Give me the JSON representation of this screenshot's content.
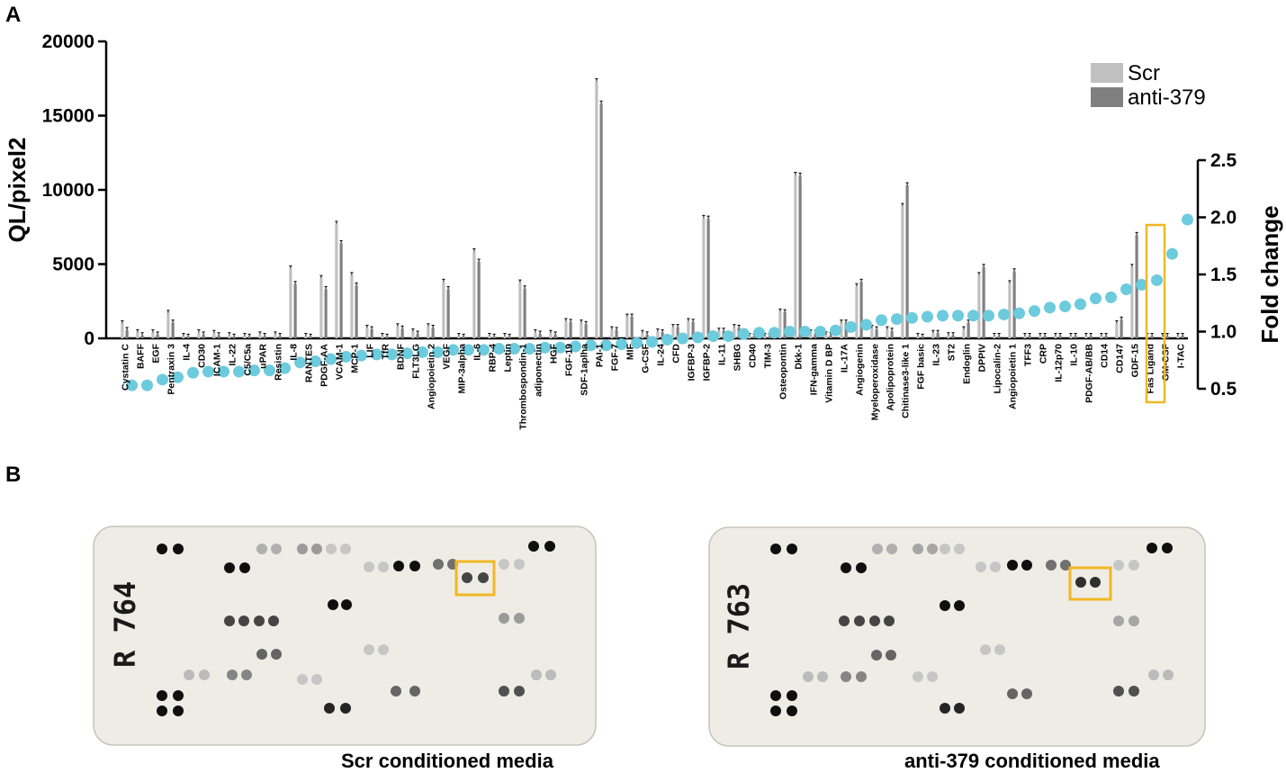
{
  "panel_labels": [
    "A",
    "B"
  ],
  "colors": {
    "scr": "#c0c0c0",
    "anti379": "#808080",
    "fold": "#6ccbdc",
    "highlight": "#f2b824",
    "membrane": "#efece6"
  },
  "chart_data": {
    "type": "bar",
    "ylabel": "QL/pixel2",
    "ylabel_right": "Fold change",
    "ylim": [
      0,
      20000
    ],
    "yticks": [
      "0",
      "5000",
      "10000",
      "15000",
      "20000"
    ],
    "ylim_right": [
      0.5,
      2.5
    ],
    "yticks_right": [
      "0.5",
      "1.0",
      "1.5",
      "2.0",
      "2.5"
    ],
    "legend": {
      "position": "top-right",
      "entries": [
        "Scr",
        "anti-379"
      ]
    },
    "highlighted_category": "GDF-15",
    "categories": [
      "Cystatin C",
      "BAFF",
      "EGF",
      "Pentraxin 3",
      "IL-4",
      "CD30",
      "ICAM-1",
      "IL-22",
      "C5/C5a",
      "uPAR",
      "Resistin",
      "IL-8",
      "RANTES",
      "PDGF-AA",
      "VCAM-1",
      "MCP-1",
      "LIF",
      "TfR",
      "BDNF",
      "FLT3LG",
      "Angiopoietin 2",
      "VEGF",
      "MIP-3alpha",
      "IL-6",
      "RBP-4",
      "Leptin",
      "Thrombospondin-1",
      "adiponectin",
      "HGF",
      "FGF-19",
      "SDF-1aplha",
      "PAI-1",
      "FGF-7",
      "MIF",
      "G-CSF",
      "IL-24",
      "CFD",
      "IGFBP-3",
      "IGFBP-2",
      "IL-11",
      "SHBG",
      "CD40",
      "TIM-3",
      "Osteopontin",
      "Dkk-1",
      "IFN-gamma",
      "Vitamin D BP",
      "IL-17A",
      "Angiogenin",
      "Myeloperoxidase",
      "Apolipoprotein",
      "Chitinase3-like 1",
      "FGF basic",
      "IL-23",
      "ST2",
      "Endoglin",
      "DPPIV",
      "Lipocalin-2",
      "Angiopoietin 1",
      "TFF3",
      "CRP",
      "IL-12p70",
      "IL-10",
      "PDGF-AB/BB",
      "CD14",
      "CD147",
      "GDF-15",
      "Fas Ligand",
      "GM-CSF",
      "I-TAC"
    ],
    "series": [
      {
        "name": "Scr",
        "values": [
          1000,
          400,
          400,
          1700,
          150,
          400,
          350,
          200,
          150,
          250,
          250,
          4700,
          150,
          4050,
          7700,
          4250,
          700,
          150,
          800,
          450,
          800,
          3800,
          150,
          5850,
          150,
          150,
          3750,
          400,
          350,
          1150,
          1050,
          17300,
          600,
          1450,
          350,
          450,
          750,
          1150,
          8100,
          500,
          750,
          150,
          150,
          1800,
          11000,
          400,
          250,
          1050,
          3500,
          700,
          600,
          8900,
          150,
          350,
          200,
          600,
          4250,
          150,
          3700,
          150,
          150,
          150,
          150,
          150,
          150,
          1000,
          4800,
          150,
          150,
          150
        ]
      },
      {
        "name": "anti-379",
        "values": [
          550,
          200,
          250,
          1050,
          100,
          250,
          200,
          100,
          100,
          150,
          150,
          3650,
          100,
          3300,
          6400,
          3550,
          600,
          100,
          650,
          300,
          700,
          3300,
          100,
          5150,
          100,
          100,
          3350,
          300,
          250,
          1100,
          950,
          15800,
          550,
          1450,
          250,
          400,
          750,
          1100,
          8050,
          500,
          700,
          100,
          100,
          1750,
          10950,
          350,
          200,
          1050,
          3800,
          600,
          500,
          10300,
          100,
          350,
          200,
          1050,
          4800,
          150,
          4500,
          150,
          150,
          150,
          150,
          150,
          150,
          1250,
          6950,
          150,
          150,
          150
        ]
      },
      {
        "name": "Fold change",
        "axis": "right",
        "values": [
          0.53,
          0.53,
          0.58,
          0.6,
          0.64,
          0.65,
          0.65,
          0.65,
          0.66,
          0.66,
          0.68,
          0.73,
          0.74,
          0.76,
          0.78,
          0.79,
          0.8,
          0.8,
          0.81,
          0.82,
          0.82,
          0.84,
          0.84,
          0.84,
          0.85,
          0.85,
          0.85,
          0.86,
          0.86,
          0.87,
          0.88,
          0.88,
          0.89,
          0.9,
          0.91,
          0.93,
          0.94,
          0.95,
          0.96,
          0.96,
          0.98,
          0.99,
          0.99,
          1.0,
          1.0,
          1.0,
          1.01,
          1.04,
          1.06,
          1.1,
          1.11,
          1.12,
          1.13,
          1.14,
          1.14,
          1.14,
          1.14,
          1.15,
          1.16,
          1.18,
          1.21,
          1.22,
          1.24,
          1.29,
          1.3,
          1.37,
          1.41,
          1.45,
          1.68,
          1.98
        ]
      }
    ]
  },
  "membranes": [
    {
      "id_text": "R 764",
      "caption": "Scr conditioned  media"
    },
    {
      "id_text": "R 763",
      "caption": "anti-379 conditioned media"
    }
  ]
}
